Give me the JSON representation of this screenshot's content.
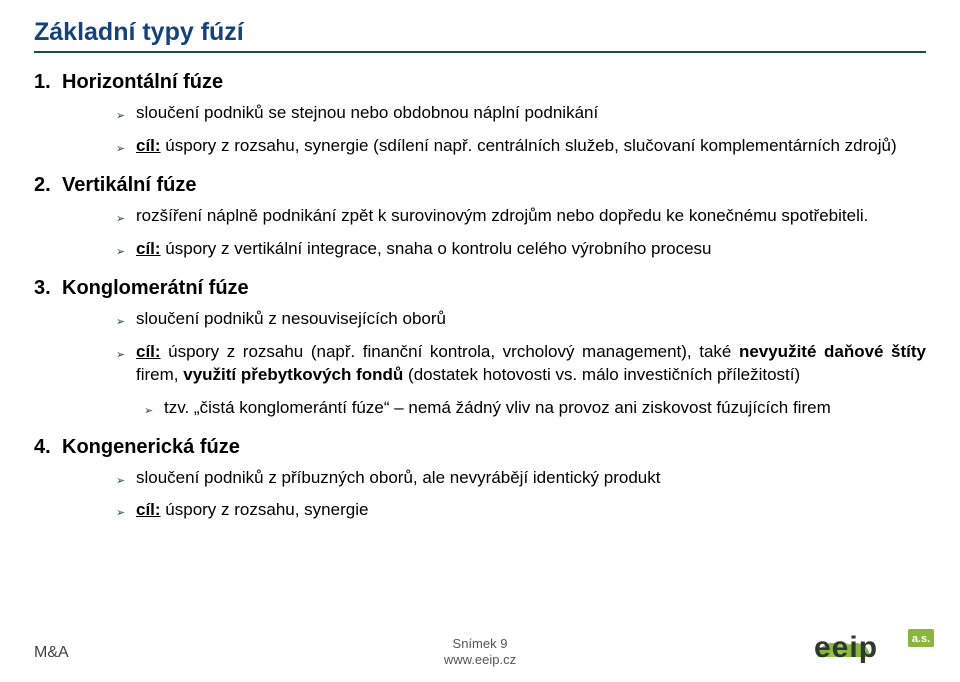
{
  "title": "Základní typy fúzí",
  "sections": [
    {
      "num": "1.",
      "label": "Horizontální fúze",
      "bullets": [
        {
          "html": "sloučení podniků se stejnou nebo obdobnou náplní podnikání"
        },
        {
          "html": "<b><u>cíl:</u></b> úspory z rozsahu, synergie (sdílení např. centrálních služeb, slučovaní komplementárních zdrojů)"
        }
      ]
    },
    {
      "num": "2.",
      "label": "Vertikální fúze",
      "bullets": [
        {
          "html": "rozšíření náplně podnikání zpět k surovinovým zdrojům nebo dopředu ke konečnému spotřebiteli."
        },
        {
          "html": "<b><u>cíl:</u></b> úspory z vertikální integrace, snaha o kontrolu celého výrobního procesu"
        }
      ]
    },
    {
      "num": "3.",
      "label": "Konglomerátní fúze",
      "bullets": [
        {
          "html": "sloučení podniků z nesouvisejících oborů"
        },
        {
          "html": "<b><u>cíl:</u></b> úspory z rozsahu (např. finanční kontrola, vrcholový management), také <b>nevyužité daňové štíty</b> firem, <b>využití přebytkových fondů</b> (dostatek hotovosti vs. málo investičních příležitostí)"
        },
        {
          "sub": true,
          "html": "tzv. „čistá konglomerántí fúze“ – nemá žádný vliv na provoz ani ziskovost fúzujících firem"
        }
      ]
    },
    {
      "num": "4.",
      "label": "Kongenerická fúze",
      "bullets": [
        {
          "html": "sloučení podniků z příbuzných oborů, ale nevyrábějí identický produkt"
        },
        {
          "html": "<b><u>cíl:</u></b> úspory z rozsahu, synergie"
        }
      ]
    }
  ],
  "footer": {
    "left": "M&A",
    "slide_label": "Snímek 9",
    "url": "www.eeip.cz"
  },
  "bullet_glyph": "➢",
  "logo": {
    "text": "eeip",
    "badge": "a.s.",
    "colors": {
      "green": "#8bb53c",
      "dark": "#2a3a2e",
      "badge_bg": "#8bb53c",
      "badge_text": "#ffffff"
    }
  }
}
